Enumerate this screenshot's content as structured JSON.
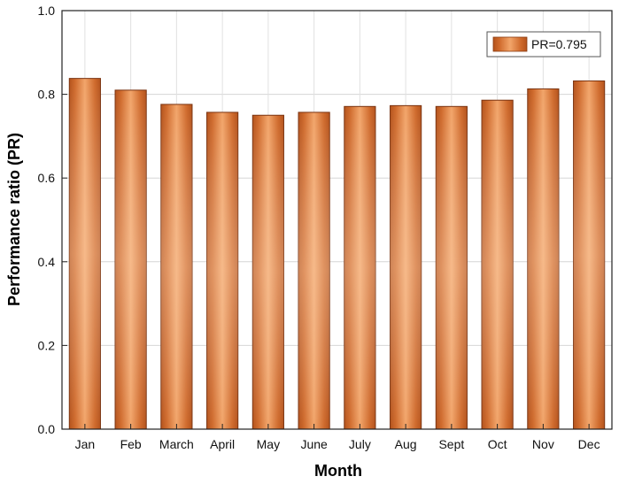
{
  "chart_data": {
    "type": "bar",
    "categories": [
      "Jan",
      "Feb",
      "March",
      "April",
      "May",
      "June",
      "July",
      "Aug",
      "Sept",
      "Oct",
      "Nov",
      "Dec"
    ],
    "series": [
      {
        "name": "PR=0.795",
        "values": [
          0.838,
          0.81,
          0.776,
          0.757,
          0.75,
          0.757,
          0.771,
          0.773,
          0.771,
          0.786,
          0.813,
          0.832
        ]
      }
    ],
    "xlabel": "Month",
    "ylabel": "Performance ratio (PR)",
    "ylim": [
      0,
      1.0
    ],
    "yticks": [
      "0.0",
      "0.2",
      "0.4",
      "0.6",
      "0.8",
      "1.0"
    ],
    "grid": true,
    "legend": "top-right",
    "bar_color": "#c8662a"
  }
}
